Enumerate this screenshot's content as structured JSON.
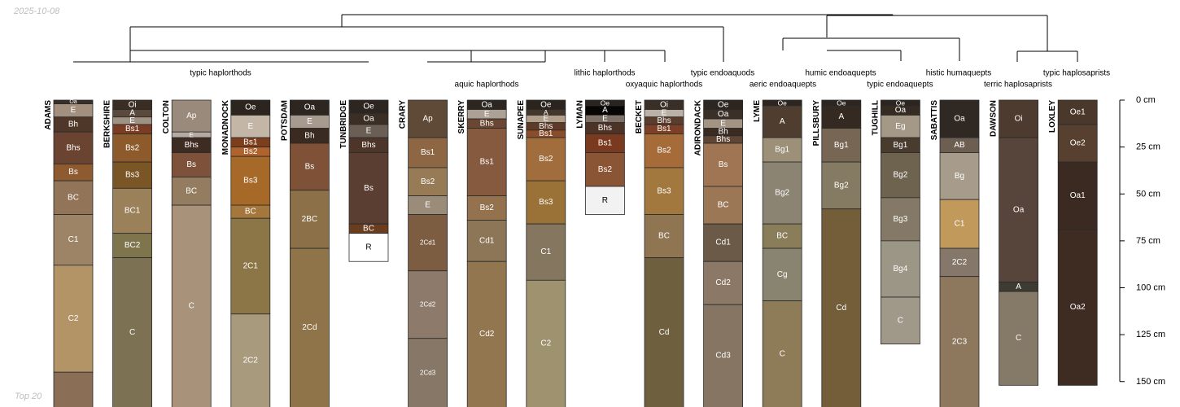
{
  "date_label": "2025-10-08",
  "footer_label": "Top 20",
  "chart_data": {
    "type": "soil-profile-sketch",
    "depth_axis": {
      "min_cm": 0,
      "max_cm": 150,
      "step_cm": 25,
      "unit": "cm"
    },
    "dendrogram_labels": [
      {
        "text": "typic haplorthods",
        "row": 1
      },
      {
        "text": "aquic haplorthods",
        "row": 2
      },
      {
        "text": "lithic haplorthods",
        "row": 1
      },
      {
        "text": "oxyaquic haplorthods",
        "row": 2
      },
      {
        "text": "typic endoaquods",
        "row": 1
      },
      {
        "text": "aeric endoaquepts",
        "row": 2
      },
      {
        "text": "humic endoaquepts",
        "row": 1
      },
      {
        "text": "typic endoaquepts",
        "row": 2
      },
      {
        "text": "histic humaquepts",
        "row": 1
      },
      {
        "text": "terric haplosaprists",
        "row": 2
      },
      {
        "text": "typic haplosaprists",
        "row": 1
      }
    ],
    "profiles": [
      {
        "name": "ADAMS",
        "horizons": [
          {
            "name": "Oa",
            "top": 0,
            "bottom": 2,
            "color": "#3a2e24"
          },
          {
            "name": "E",
            "top": 2,
            "bottom": 9,
            "color": "#a38f7e"
          },
          {
            "name": "Bh",
            "top": 9,
            "bottom": 17,
            "color": "#4e3628"
          },
          {
            "name": "Bhs",
            "top": 17,
            "bottom": 34,
            "color": "#6a4431"
          },
          {
            "name": "Bs",
            "top": 34,
            "bottom": 43,
            "color": "#8e5a2f"
          },
          {
            "name": "BC",
            "top": 43,
            "bottom": 61,
            "color": "#927458"
          },
          {
            "name": "C1",
            "top": 61,
            "bottom": 88,
            "color": "#9d8467"
          },
          {
            "name": "C2",
            "top": 88,
            "bottom": 145,
            "color": "#b29467"
          },
          {
            "name": "",
            "top": 145,
            "bottom": 165,
            "color": "#8a6e55"
          }
        ]
      },
      {
        "name": "BERKSHIRE",
        "horizons": [
          {
            "name": "Oi",
            "top": 0,
            "bottom": 5,
            "color": "#3a2e24"
          },
          {
            "name": "A",
            "top": 5,
            "bottom": 9,
            "color": "#5b4a3b"
          },
          {
            "name": "E",
            "top": 9,
            "bottom": 13,
            "color": "#9f9284"
          },
          {
            "name": "Bs1",
            "top": 13,
            "bottom": 18,
            "color": "#7a3d24"
          },
          {
            "name": "Bs2",
            "top": 18,
            "bottom": 33,
            "color": "#8c5a2b"
          },
          {
            "name": "Bs3",
            "top": 33,
            "bottom": 47,
            "color": "#7a5526"
          },
          {
            "name": "BC1",
            "top": 47,
            "bottom": 71,
            "color": "#9a8159"
          },
          {
            "name": "BC2",
            "top": 71,
            "bottom": 84,
            "color": "#7f754d"
          },
          {
            "name": "C",
            "top": 84,
            "bottom": 165,
            "color": "#7c7253"
          }
        ]
      },
      {
        "name": "COLTON",
        "horizons": [
          {
            "name": "Ap",
            "top": 0,
            "bottom": 17,
            "color": "#9a8a7c"
          },
          {
            "name": "E",
            "top": 17,
            "bottom": 20,
            "color": "#b5aba3"
          },
          {
            "name": "Bhs",
            "top": 20,
            "bottom": 28,
            "color": "#3e2c22"
          },
          {
            "name": "Bs",
            "top": 28,
            "bottom": 41,
            "color": "#7d513a"
          },
          {
            "name": "BC",
            "top": 41,
            "bottom": 56,
            "color": "#947c61"
          },
          {
            "name": "C",
            "top": 56,
            "bottom": 165,
            "color": "#a8937a"
          }
        ]
      },
      {
        "name": "MONADNOCK",
        "horizons": [
          {
            "name": "Oe",
            "top": 0,
            "bottom": 8,
            "color": "#2b241f"
          },
          {
            "name": "E",
            "top": 8,
            "bottom": 20,
            "color": "#c4b6a6"
          },
          {
            "name": "Bs1",
            "top": 20,
            "bottom": 25,
            "color": "#7d3e1d"
          },
          {
            "name": "Bs2",
            "top": 25,
            "bottom": 30,
            "color": "#b0632c"
          },
          {
            "name": "Bs3",
            "top": 30,
            "bottom": 56,
            "color": "#a76927"
          },
          {
            "name": "BC",
            "top": 56,
            "bottom": 63,
            "color": "#a5773c"
          },
          {
            "name": "2C1",
            "top": 63,
            "bottom": 114,
            "color": "#8c7546"
          },
          {
            "name": "2C2",
            "top": 114,
            "bottom": 165,
            "color": "#a89a7c"
          }
        ]
      },
      {
        "name": "POTSDAM",
        "horizons": [
          {
            "name": "Oa",
            "top": 0,
            "bottom": 8,
            "color": "#2d251f"
          },
          {
            "name": "E",
            "top": 8,
            "bottom": 15,
            "color": "#a79b90"
          },
          {
            "name": "Bh",
            "top": 15,
            "bottom": 23,
            "color": "#3b2a20"
          },
          {
            "name": "Bs",
            "top": 23,
            "bottom": 48,
            "color": "#7f5238"
          },
          {
            "name": "2BC",
            "top": 48,
            "bottom": 79,
            "color": "#8b7048"
          },
          {
            "name": "2Cd",
            "top": 79,
            "bottom": 165,
            "color": "#8e7448"
          }
        ]
      },
      {
        "name": "TUNBRIDGE",
        "horizons": [
          {
            "name": "Oe",
            "top": 0,
            "bottom": 7,
            "color": "#2d2520"
          },
          {
            "name": "Oa",
            "top": 7,
            "bottom": 13,
            "color": "#3a2e25"
          },
          {
            "name": "E",
            "top": 13,
            "bottom": 20,
            "color": "#6b5f55"
          },
          {
            "name": "Bhs",
            "top": 20,
            "bottom": 28,
            "color": "#4d3629"
          },
          {
            "name": "Bs",
            "top": 28,
            "bottom": 66,
            "color": "#5a3e31"
          },
          {
            "name": "BC",
            "top": 66,
            "bottom": 71,
            "color": "#6b3d1f"
          },
          {
            "name": "R",
            "top": 71,
            "bottom": 86,
            "color": "#ffffff"
          }
        ]
      },
      {
        "name": "CRARY",
        "horizons": [
          {
            "name": "Ap",
            "top": 0,
            "bottom": 20,
            "color": "#5e4a37"
          },
          {
            "name": "Bs1",
            "top": 20,
            "bottom": 36,
            "color": "#8d6743"
          },
          {
            "name": "Bs2",
            "top": 36,
            "bottom": 51,
            "color": "#977a56"
          },
          {
            "name": "E",
            "top": 51,
            "bottom": 61,
            "color": "#9b8c79"
          },
          {
            "name": "2Cd1",
            "top": 61,
            "bottom": 91,
            "color": "#7d5d41"
          },
          {
            "name": "2Cd2",
            "top": 91,
            "bottom": 127,
            "color": "#8d7a6a"
          },
          {
            "name": "2Cd3",
            "top": 127,
            "bottom": 165,
            "color": "#877766"
          }
        ]
      },
      {
        "name": "SKERRY",
        "horizons": [
          {
            "name": "Oa",
            "top": 0,
            "bottom": 5,
            "color": "#2c2520"
          },
          {
            "name": "E",
            "top": 5,
            "bottom": 10,
            "color": "#ada196"
          },
          {
            "name": "Bhs",
            "top": 10,
            "bottom": 15,
            "color": "#6a4733"
          },
          {
            "name": "Bs1",
            "top": 15,
            "bottom": 51,
            "color": "#855a3f"
          },
          {
            "name": "Bs2",
            "top": 51,
            "bottom": 64,
            "color": "#94724e"
          },
          {
            "name": "Cd1",
            "top": 64,
            "bottom": 86,
            "color": "#8d7658"
          },
          {
            "name": "Cd2",
            "top": 86,
            "bottom": 165,
            "color": "#917650"
          }
        ]
      },
      {
        "name": "SUNAPEE",
        "horizons": [
          {
            "name": "Oe",
            "top": 0,
            "bottom": 5,
            "color": "#2b241e"
          },
          {
            "name": "A",
            "top": 5,
            "bottom": 8,
            "color": "#44362b"
          },
          {
            "name": "E",
            "top": 8,
            "bottom": 12,
            "color": "#b19f8c"
          },
          {
            "name": "Bhs",
            "top": 12,
            "bottom": 16,
            "color": "#5f3a26"
          },
          {
            "name": "Bs1",
            "top": 16,
            "bottom": 20,
            "color": "#8a4d2b"
          },
          {
            "name": "Bs2",
            "top": 20,
            "bottom": 43,
            "color": "#a16d3d"
          },
          {
            "name": "Bs3",
            "top": 43,
            "bottom": 66,
            "color": "#9a7136"
          },
          {
            "name": "C1",
            "top": 66,
            "bottom": 96,
            "color": "#85775f"
          },
          {
            "name": "C2",
            "top": 96,
            "bottom": 165,
            "color": "#9f926f"
          }
        ]
      },
      {
        "name": "LYMAN",
        "horizons": [
          {
            "name": "Oe",
            "top": 0,
            "bottom": 3,
            "color": "#2a2420"
          },
          {
            "name": "A",
            "top": 3,
            "bottom": 8,
            "color": "#080605"
          },
          {
            "name": "E",
            "top": 8,
            "bottom": 12,
            "color": "#7d7168"
          },
          {
            "name": "Bhs",
            "top": 12,
            "bottom": 18,
            "color": "#4d3325"
          },
          {
            "name": "Bs1",
            "top": 18,
            "bottom": 28,
            "color": "#7a3a1f"
          },
          {
            "name": "Bs2",
            "top": 28,
            "bottom": 46,
            "color": "#8a5535"
          },
          {
            "name": "R",
            "top": 46,
            "bottom": 61,
            "color": "#f2f2f2"
          }
        ]
      },
      {
        "name": "BECKET",
        "horizons": [
          {
            "name": "Oi",
            "top": 0,
            "bottom": 5,
            "color": "#3a2f26"
          },
          {
            "name": "E",
            "top": 5,
            "bottom": 9,
            "color": "#bdb1a5"
          },
          {
            "name": "Bhs",
            "top": 9,
            "bottom": 13,
            "color": "#5a3d2d"
          },
          {
            "name": "Bs1",
            "top": 13,
            "bottom": 18,
            "color": "#7b4026"
          },
          {
            "name": "Bs2",
            "top": 18,
            "bottom": 36,
            "color": "#a56c3a"
          },
          {
            "name": "Bs3",
            "top": 36,
            "bottom": 61,
            "color": "#a2783e"
          },
          {
            "name": "BC",
            "top": 61,
            "bottom": 84,
            "color": "#8f7551"
          },
          {
            "name": "Cd",
            "top": 84,
            "bottom": 165,
            "color": "#6e5f3e"
          }
        ]
      },
      {
        "name": "ADIRONDACK",
        "horizons": [
          {
            "name": "Oe",
            "top": 0,
            "bottom": 5,
            "color": "#2c2520"
          },
          {
            "name": "Oa",
            "top": 5,
            "bottom": 10,
            "color": "#3b3027"
          },
          {
            "name": "E",
            "top": 10,
            "bottom": 15,
            "color": "#a29383"
          },
          {
            "name": "Bh",
            "top": 15,
            "bottom": 19,
            "color": "#3a2b22"
          },
          {
            "name": "Bhs",
            "top": 19,
            "bottom": 23,
            "color": "#5e4534"
          },
          {
            "name": "Bs",
            "top": 23,
            "bottom": 46,
            "color": "#a07554"
          },
          {
            "name": "BC",
            "top": 46,
            "bottom": 66,
            "color": "#9b7756"
          },
          {
            "name": "Cd1",
            "top": 66,
            "bottom": 86,
            "color": "#6b5a47"
          },
          {
            "name": "Cd2",
            "top": 86,
            "bottom": 109,
            "color": "#8b7867"
          },
          {
            "name": "Cd3",
            "top": 109,
            "bottom": 165,
            "color": "#857562"
          }
        ]
      },
      {
        "name": "LYME",
        "horizons": [
          {
            "name": "Oe",
            "top": 0,
            "bottom": 3,
            "color": "#2d2520"
          },
          {
            "name": "A",
            "top": 3,
            "bottom": 20,
            "color": "#4f3e30"
          },
          {
            "name": "Bg1",
            "top": 20,
            "bottom": 33,
            "color": "#9c9079"
          },
          {
            "name": "Bg2",
            "top": 33,
            "bottom": 66,
            "color": "#8b8472"
          },
          {
            "name": "BC",
            "top": 66,
            "bottom": 79,
            "color": "#8a7d59"
          },
          {
            "name": "Cg",
            "top": 79,
            "bottom": 107,
            "color": "#898470"
          },
          {
            "name": "C",
            "top": 107,
            "bottom": 165,
            "color": "#8d7c57"
          }
        ]
      },
      {
        "name": "PILLSBURY",
        "horizons": [
          {
            "name": "Oe",
            "top": 0,
            "bottom": 3,
            "color": "#2d2520"
          },
          {
            "name": "A",
            "top": 3,
            "bottom": 15,
            "color": "#342a22"
          },
          {
            "name": "Bg1",
            "top": 15,
            "bottom": 33,
            "color": "#766653"
          },
          {
            "name": "Bg2",
            "top": 33,
            "bottom": 58,
            "color": "#857a62"
          },
          {
            "name": "Cd",
            "top": 58,
            "bottom": 165,
            "color": "#735e39"
          }
        ]
      },
      {
        "name": "TUGHILL",
        "horizons": [
          {
            "name": "Oe",
            "top": 0,
            "bottom": 3,
            "color": "#2b241f"
          },
          {
            "name": "Oa",
            "top": 3,
            "bottom": 8,
            "color": "#352b23"
          },
          {
            "name": "Eg",
            "top": 8,
            "bottom": 20,
            "color": "#a49887"
          },
          {
            "name": "Bg1",
            "top": 20,
            "bottom": 28,
            "color": "#4a3b2f"
          },
          {
            "name": "Bg2",
            "top": 28,
            "bottom": 52,
            "color": "#6e634f"
          },
          {
            "name": "Bg3",
            "top": 52,
            "bottom": 75,
            "color": "#847966"
          },
          {
            "name": "Bg4",
            "top": 75,
            "bottom": 105,
            "color": "#9c9686"
          },
          {
            "name": "C",
            "top": 105,
            "bottom": 130,
            "color": "#a09888"
          }
        ]
      },
      {
        "name": "SABATTIS",
        "horizons": [
          {
            "name": "Oa",
            "top": 0,
            "bottom": 20,
            "color": "#302923"
          },
          {
            "name": "AB",
            "top": 20,
            "bottom": 28,
            "color": "#6c5e51"
          },
          {
            "name": "Bg",
            "top": 28,
            "bottom": 53,
            "color": "#a79b8b"
          },
          {
            "name": "C1",
            "top": 53,
            "bottom": 79,
            "color": "#c19a5b"
          },
          {
            "name": "2C2",
            "top": 79,
            "bottom": 94,
            "color": "#85776a"
          },
          {
            "name": "2C3",
            "top": 94,
            "bottom": 165,
            "color": "#8d785e"
          }
        ]
      },
      {
        "name": "DAWSON",
        "horizons": [
          {
            "name": "Oi",
            "top": 0,
            "bottom": 20,
            "color": "#4e3b2f"
          },
          {
            "name": "Oa",
            "top": 20,
            "bottom": 97,
            "color": "#57443a"
          },
          {
            "name": "A",
            "top": 97,
            "bottom": 102,
            "color": "#3e3b32"
          },
          {
            "name": "C",
            "top": 102,
            "bottom": 152,
            "color": "#857a67"
          }
        ]
      },
      {
        "name": "LOXLEY",
        "horizons": [
          {
            "name": "Oe1",
            "top": 0,
            "bottom": 13,
            "color": "#4a382c"
          },
          {
            "name": "Oe2",
            "top": 13,
            "bottom": 33,
            "color": "#57402f"
          },
          {
            "name": "Oa1",
            "top": 33,
            "bottom": 69,
            "color": "#3a2a22"
          },
          {
            "name": "Oa2",
            "top": 69,
            "bottom": 152,
            "color": "#3e2c23"
          }
        ]
      }
    ]
  }
}
